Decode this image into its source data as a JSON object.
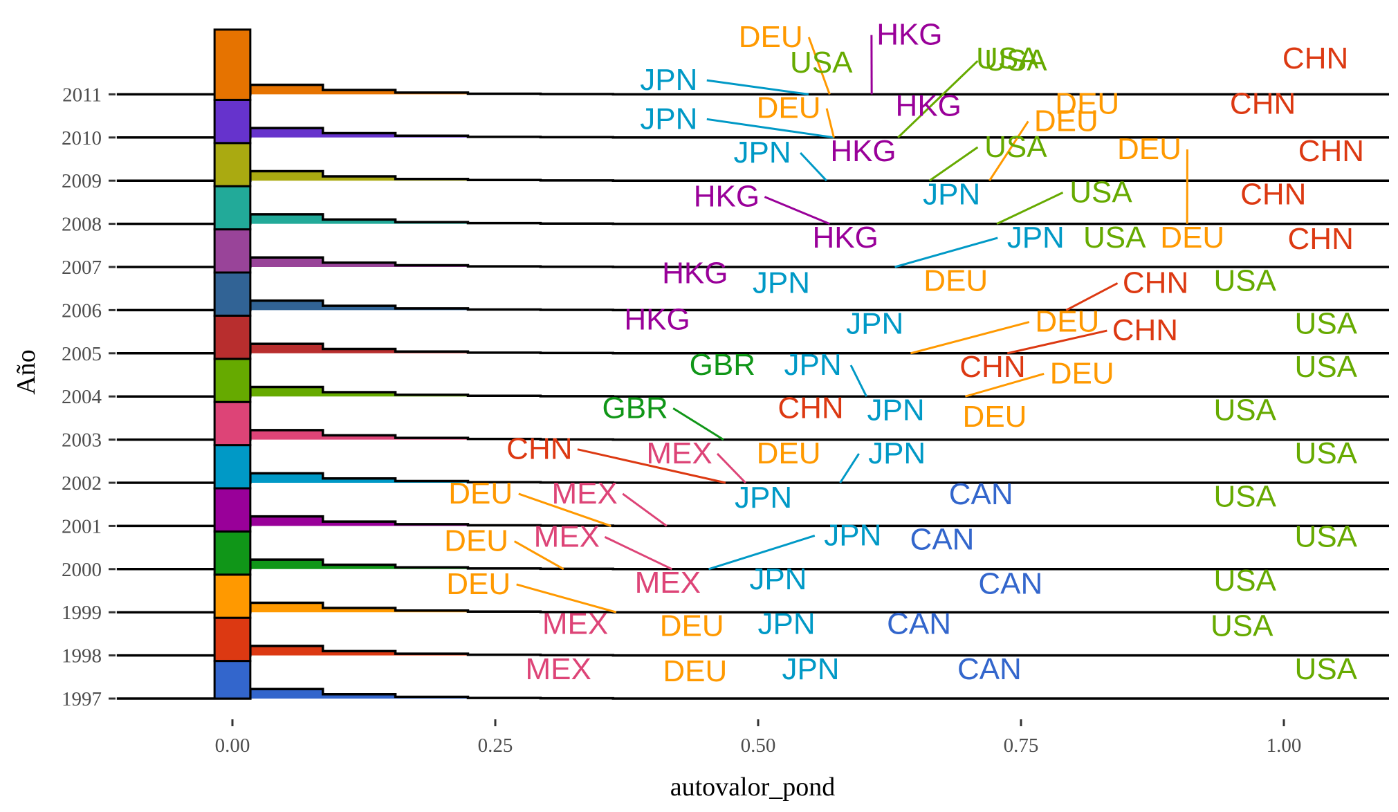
{
  "chart_data": {
    "type": "ridgeline-histogram",
    "title": "",
    "xlabel": "autovalor_pond",
    "ylabel": "Año",
    "xlim": [
      -0.11,
      1.11
    ],
    "x_ticks": [
      0.0,
      0.25,
      0.5,
      0.75,
      1.0
    ],
    "x_tick_labels": [
      "0.00",
      "0.25",
      "0.50",
      "0.75",
      "1.00"
    ],
    "years": [
      "1997",
      "1998",
      "1999",
      "2000",
      "2001",
      "2002",
      "2003",
      "2004",
      "2005",
      "2006",
      "2007",
      "2008",
      "2009",
      "2010",
      "2011"
    ],
    "grid": false,
    "legend": "none",
    "year_colors": [
      "#3366CC",
      "#DC3912",
      "#FF9900",
      "#109618",
      "#990099",
      "#0099C6",
      "#DD4477",
      "#66AA00",
      "#B82E2E",
      "#316395",
      "#994499",
      "#22AA99",
      "#AAAA11",
      "#6633CC",
      "#E67300"
    ],
    "country_colors": {
      "USA": "#66AA00",
      "CHN": "#DC3912",
      "DEU": "#FF9900",
      "JPN": "#0099C6",
      "HKG": "#990099",
      "CAN": "#3366CC",
      "MEX": "#DD4477",
      "GBR": "#109618"
    },
    "labels": [
      {
        "year": "1997",
        "country": "MEX",
        "label_x": 0.31,
        "label_y": 0.45
      },
      {
        "year": "1997",
        "country": "DEU",
        "label_x": 0.44,
        "label_y": 0.4
      },
      {
        "year": "1997",
        "country": "JPN",
        "label_x": 0.55,
        "label_y": 0.45
      },
      {
        "year": "1997",
        "country": "CAN",
        "label_x": 0.72,
        "label_y": 0.45
      },
      {
        "year": "1997",
        "country": "USA",
        "label_x": 1.04,
        "label_y": 0.45
      },
      {
        "year": "1998",
        "country": "MEX",
        "label_x": 0.326,
        "label_y": 0.5
      },
      {
        "year": "1998",
        "country": "DEU",
        "label_x": 0.437,
        "label_y": 0.45
      },
      {
        "year": "1998",
        "country": "JPN",
        "label_x": 0.527,
        "label_y": 0.5
      },
      {
        "year": "1998",
        "country": "CAN",
        "label_x": 0.653,
        "label_y": 0.5
      },
      {
        "year": "1998",
        "country": "USA",
        "label_x": 0.96,
        "label_y": 0.45
      },
      {
        "year": "1999",
        "country": "DEU",
        "label_x": 0.234,
        "label_y": 0.42,
        "point_x": 0.365
      },
      {
        "year": "1999",
        "country": "MEX",
        "label_x": 0.414,
        "label_y": 0.45
      },
      {
        "year": "1999",
        "country": "JPN",
        "label_x": 0.519,
        "label_y": 0.53
      },
      {
        "year": "1999",
        "country": "CAN",
        "label_x": 0.74,
        "label_y": 0.43
      },
      {
        "year": "1999",
        "country": "USA",
        "label_x": 0.963,
        "label_y": 0.5
      },
      {
        "year": "2000",
        "country": "DEU",
        "label_x": 0.232,
        "label_y": 0.42,
        "point_x": 0.315
      },
      {
        "year": "2000",
        "country": "MEX",
        "label_x": 0.318,
        "label_y": 0.52,
        "point_x": 0.418
      },
      {
        "year": "2000",
        "country": "JPN",
        "label_x": 0.59,
        "label_y": 0.55,
        "point_x": 0.453
      },
      {
        "year": "2000",
        "country": "CAN",
        "label_x": 0.675,
        "label_y": 0.45
      },
      {
        "year": "2000",
        "country": "USA",
        "label_x": 1.04,
        "label_y": 0.52
      },
      {
        "year": "2001",
        "country": "DEU",
        "label_x": 0.236,
        "label_y": 0.52,
        "point_x": 0.36
      },
      {
        "year": "2001",
        "country": "MEX",
        "label_x": 0.335,
        "label_y": 0.52,
        "point_x": 0.413
      },
      {
        "year": "2001",
        "country": "JPN",
        "label_x": 0.505,
        "label_y": 0.42
      },
      {
        "year": "2001",
        "country": "CAN",
        "label_x": 0.712,
        "label_y": 0.5
      },
      {
        "year": "2001",
        "country": "USA",
        "label_x": 0.963,
        "label_y": 0.45
      },
      {
        "year": "2002",
        "country": "CHN",
        "label_x": 0.292,
        "label_y": 0.55,
        "point_x": 0.469
      },
      {
        "year": "2002",
        "country": "MEX",
        "label_x": 0.425,
        "label_y": 0.45,
        "point_x": 0.488
      },
      {
        "year": "2002",
        "country": "DEU",
        "label_x": 0.529,
        "label_y": 0.45
      },
      {
        "year": "2002",
        "country": "JPN",
        "label_x": 0.632,
        "label_y": 0.45,
        "point_x": 0.578
      },
      {
        "year": "2002",
        "country": "USA",
        "label_x": 1.04,
        "label_y": 0.45
      },
      {
        "year": "2003",
        "country": "GBR",
        "label_x": 0.383,
        "label_y": 0.5,
        "point_x": 0.467
      },
      {
        "year": "2003",
        "country": "CHN",
        "label_x": 0.55,
        "label_y": 0.5
      },
      {
        "year": "2003",
        "country": "JPN",
        "label_x": 0.631,
        "label_y": 0.45
      },
      {
        "year": "2003",
        "country": "DEU",
        "label_x": 0.725,
        "label_y": 0.3
      },
      {
        "year": "2003",
        "country": "USA",
        "label_x": 0.963,
        "label_y": 0.45
      },
      {
        "year": "2004",
        "country": "GBR",
        "label_x": 0.466,
        "label_y": 0.5
      },
      {
        "year": "2004",
        "country": "JPN",
        "label_x": 0.552,
        "label_y": 0.5,
        "point_x": 0.603
      },
      {
        "year": "2004",
        "country": "CHN",
        "label_x": 0.723,
        "label_y": 0.45
      },
      {
        "year": "2004",
        "country": "DEU",
        "label_x": 0.808,
        "label_y": 0.3,
        "point_x": 0.697
      },
      {
        "year": "2004",
        "country": "USA",
        "label_x": 1.04,
        "label_y": 0.45
      },
      {
        "year": "2005",
        "country": "HKG",
        "label_x": 0.404,
        "label_y": 0.55
      },
      {
        "year": "2005",
        "country": "JPN",
        "label_x": 0.611,
        "label_y": 0.45
      },
      {
        "year": "2005",
        "country": "DEU",
        "label_x": 0.794,
        "label_y": 0.5,
        "point_x": 0.645
      },
      {
        "year": "2005",
        "country": "CHN",
        "label_x": 0.868,
        "label_y": 0.3,
        "point_x": 0.737
      },
      {
        "year": "2005",
        "country": "USA",
        "label_x": 1.04,
        "label_y": 0.45
      },
      {
        "year": "2006",
        "country": "HKG",
        "label_x": 0.44,
        "label_y": 0.62
      },
      {
        "year": "2006",
        "country": "JPN",
        "label_x": 0.522,
        "label_y": 0.4
      },
      {
        "year": "2006",
        "country": "DEU",
        "label_x": 0.688,
        "label_y": 0.45
      },
      {
        "year": "2006",
        "country": "CHN",
        "label_x": 0.878,
        "label_y": 0.4,
        "point_x": 0.793
      },
      {
        "year": "2006",
        "country": "USA",
        "label_x": 0.963,
        "label_y": 0.45
      },
      {
        "year": "2007",
        "country": "HKG",
        "label_x": 0.583,
        "label_y": 0.45
      },
      {
        "year": "2007",
        "country": "JPN",
        "label_x": 0.764,
        "label_y": 0.45,
        "point_x": 0.63
      },
      {
        "year": "2007",
        "country": "USA",
        "label_x": 0.839,
        "label_y": 0.45
      },
      {
        "year": "2007",
        "country": "DEU",
        "label_x": 0.913,
        "label_y": 0.45
      },
      {
        "year": "2007",
        "country": "CHN",
        "label_x": 1.035,
        "label_y": 0.42
      },
      {
        "year": "2008",
        "country": "HKG",
        "label_x": 0.47,
        "label_y": 0.4,
        "point_x": 0.568
      },
      {
        "year": "2008",
        "country": "JPN",
        "label_x": 0.684,
        "label_y": 0.45
      },
      {
        "year": "2008",
        "country": "USA",
        "label_x": 0.826,
        "label_y": 0.5,
        "point_x": 0.727
      },
      {
        "year": "2008",
        "country": "DEU",
        "label_x": 0.872,
        "label_y": 1.5,
        "point_x": 0.908
      },
      {
        "year": "2008",
        "country": "CHN",
        "label_x": 0.99,
        "label_y": 0.45
      },
      {
        "year": "2009",
        "country": "JPN",
        "label_x": 0.504,
        "label_y": 0.42,
        "point_x": 0.565
      },
      {
        "year": "2009",
        "country": "HKG",
        "label_x": 0.6,
        "label_y": 0.45
      },
      {
        "year": "2009",
        "country": "USA",
        "label_x": 0.745,
        "label_y": 0.55,
        "point_x": 0.663
      },
      {
        "year": "2009",
        "country": "DEU",
        "label_x": 0.793,
        "label_y": 1.15,
        "point_x": 0.72
      },
      {
        "year": "2009",
        "country": "CHN",
        "label_x": 1.045,
        "label_y": 0.45
      },
      {
        "year": "2010",
        "country": "JPN",
        "label_x": 0.415,
        "label_y": 0.2,
        "point_x": 0.572
      },
      {
        "year": "2010",
        "country": "DEU",
        "label_x": 0.529,
        "label_y": 0.45,
        "point_x": 0.572
      },
      {
        "year": "2010",
        "country": "HKG",
        "label_x": 0.662,
        "label_y": 0.5
      },
      {
        "year": "2010",
        "country": "USA",
        "label_x": 0.745,
        "label_y": 1.55,
        "point_x": 0.633
      },
      {
        "year": "2010",
        "country": "DEU",
        "label_x": 0.813,
        "label_y": 0.55
      },
      {
        "year": "2010",
        "country": "CHN",
        "label_x": 0.98,
        "label_y": 0.55
      },
      {
        "year": "2011",
        "country": "JPN",
        "label_x": 0.415,
        "label_y": 0.1,
        "point_x": 0.548
      },
      {
        "year": "2011",
        "country": "DEU",
        "label_x": 0.512,
        "label_y": 1.1,
        "point_x": 0.568
      },
      {
        "year": "2011",
        "country": "USA",
        "label_x": 0.56,
        "label_y": 0.5
      },
      {
        "year": "2011",
        "country": "HKG",
        "label_x": 0.644,
        "label_y": 1.15,
        "point_x": 0.608
      },
      {
        "year": "2011",
        "country": "USA",
        "label_x": 0.737,
        "label_y": 0.6
      },
      {
        "year": "2011",
        "country": "CHN",
        "label_x": 1.03,
        "label_y": 0.6
      }
    ]
  }
}
